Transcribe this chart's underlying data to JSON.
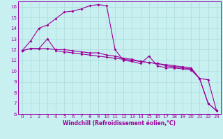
{
  "xlabel": "Windchill (Refroidissement éolien,°C)",
  "ylabel": "",
  "xlim": [
    -0.5,
    23.5
  ],
  "ylim": [
    6,
    16.5
  ],
  "yticks": [
    6,
    7,
    8,
    9,
    10,
    11,
    12,
    13,
    14,
    15,
    16
  ],
  "xticks": [
    0,
    1,
    2,
    3,
    4,
    5,
    6,
    7,
    8,
    9,
    10,
    11,
    12,
    13,
    14,
    15,
    16,
    17,
    18,
    19,
    20,
    21,
    22,
    23
  ],
  "bg_color": "#c8f0f0",
  "grid_color": "#b0dede",
  "line_color": "#990099",
  "spine_color": "#9900aa",
  "line1_x": [
    0,
    1,
    2,
    3,
    4,
    5,
    6,
    7,
    8,
    9,
    10,
    11,
    12,
    13,
    14,
    15,
    16,
    17,
    18,
    19,
    20,
    21,
    22,
    23
  ],
  "line1_y": [
    11.9,
    12.8,
    14.0,
    14.3,
    14.9,
    15.5,
    15.6,
    15.8,
    16.1,
    16.2,
    16.1,
    12.0,
    11.0,
    10.9,
    10.7,
    11.4,
    10.5,
    10.3,
    10.3,
    10.2,
    10.1,
    9.3,
    9.2,
    6.3
  ],
  "line2_x": [
    0,
    1,
    2,
    3,
    4,
    5,
    6,
    7,
    8,
    9,
    10,
    11,
    12,
    13,
    14,
    15,
    16,
    17,
    18,
    19,
    20,
    21,
    22,
    23
  ],
  "line2_y": [
    11.9,
    12.1,
    12.1,
    13.0,
    11.9,
    11.8,
    11.7,
    11.6,
    11.5,
    11.4,
    11.3,
    11.2,
    11.1,
    11.0,
    10.9,
    10.8,
    10.7,
    10.6,
    10.5,
    10.4,
    10.3,
    9.3,
    7.0,
    6.3
  ],
  "line3_x": [
    0,
    1,
    2,
    3,
    4,
    5,
    6,
    7,
    8,
    9,
    10,
    11,
    12,
    13,
    14,
    15,
    16,
    17,
    18,
    19,
    20,
    21,
    22,
    23
  ],
  "line3_y": [
    11.9,
    12.1,
    12.1,
    12.1,
    12.0,
    12.0,
    11.9,
    11.8,
    11.7,
    11.7,
    11.5,
    11.4,
    11.2,
    11.1,
    10.9,
    10.8,
    10.7,
    10.5,
    10.4,
    10.3,
    10.2,
    9.3,
    7.0,
    6.3
  ],
  "tick_fontsize": 5.0,
  "xlabel_fontsize": 5.5
}
